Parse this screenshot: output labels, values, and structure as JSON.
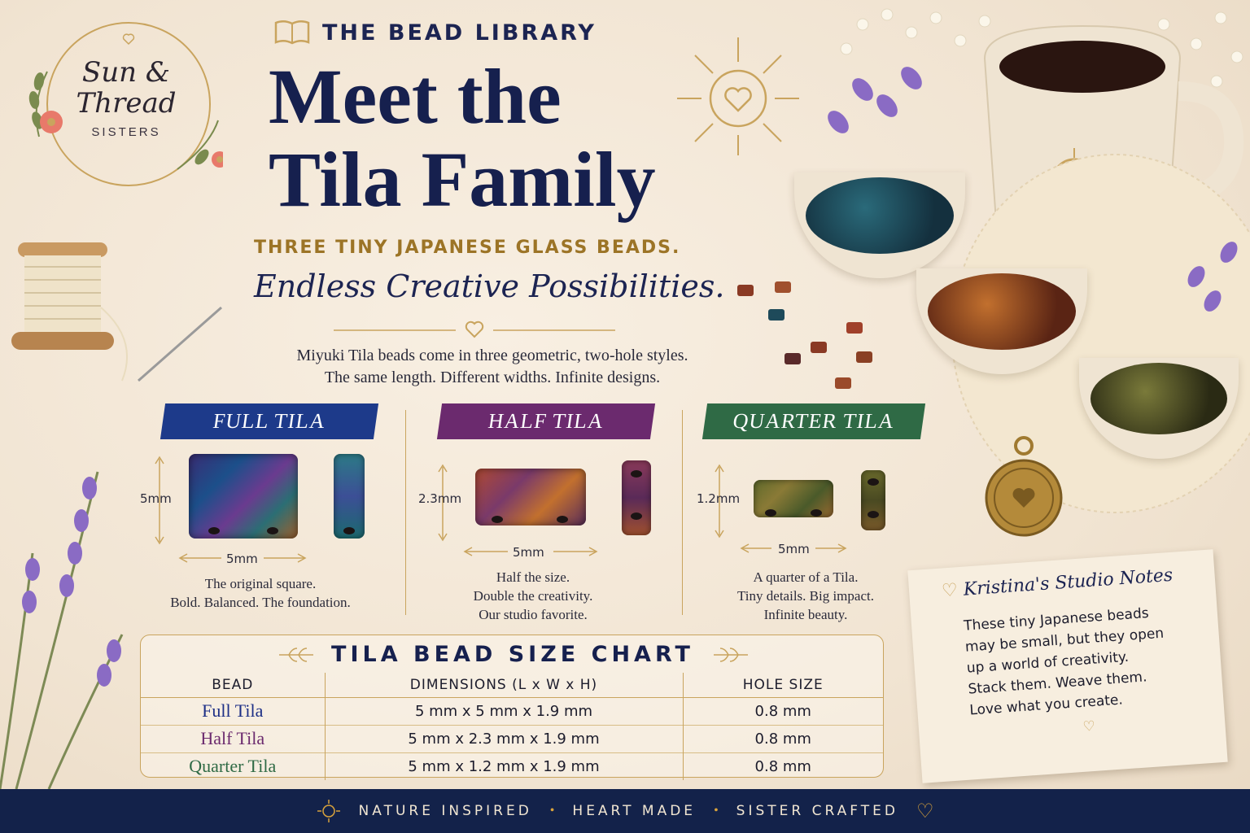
{
  "brand": {
    "logo_line1": "Sun &",
    "logo_line2": "Thread",
    "logo_sub": "SISTERS",
    "library": "THE BEAD LIBRARY"
  },
  "hero": {
    "title_line1": "Meet the",
    "title_line2": "Tila Family",
    "subtitle": "THREE TINY JAPANESE GLASS BEADS.",
    "tagline": "Endless Creative Possibilities.",
    "intro_line1": "Miyuki Tila beads come in three geometric, two-hole styles.",
    "intro_line2": "The same length. Different widths. Infinite designs."
  },
  "beads": [
    {
      "name": "FULL TILA",
      "height_label": "5mm",
      "length_label": "5mm",
      "desc": [
        "The original square.",
        "Bold. Balanced. The foundation."
      ],
      "banner_color": "#1d3a8a"
    },
    {
      "name": "HALF TILA",
      "height_label": "2.3mm",
      "length_label": "5mm",
      "desc": [
        "Half the size.",
        "Double the creativity.",
        "Our studio favorite."
      ],
      "banner_color": "#6b2a6e"
    },
    {
      "name": "QUARTER TILA",
      "height_label": "1.2mm",
      "length_label": "5mm",
      "desc": [
        "A quarter of a Tila.",
        "Tiny details. Big impact.",
        "Infinite beauty."
      ],
      "banner_color": "#2f6a45"
    }
  ],
  "chart": {
    "title": "TILA BEAD SIZE CHART",
    "headers": [
      "BEAD",
      "DIMENSIONS (L x W x H)",
      "HOLE SIZE"
    ],
    "rows": [
      {
        "bead": "Full Tila",
        "dims": "5 mm x 5 mm x 1.9 mm",
        "hole": "0.8 mm",
        "color": "#1d2f86"
      },
      {
        "bead": "Half Tila",
        "dims": "5 mm x 2.3 mm x 1.9 mm",
        "hole": "0.8 mm",
        "color": "#6b2a6e"
      },
      {
        "bead": "Quarter Tila",
        "dims": "5 mm x 1.2 mm x 1.9 mm",
        "hole": "0.8 mm",
        "color": "#2f6a45"
      }
    ]
  },
  "note": {
    "title": "Kristina's Studio Notes",
    "lines": [
      "These tiny Japanese beads",
      "may be small, but they open",
      "up a world of creativity.",
      "Stack them. Weave them.",
      "Love what you create."
    ]
  },
  "footer": {
    "items": [
      "NATURE INSPIRED",
      "HEART MADE",
      "SISTER CRAFTED"
    ]
  },
  "colors": {
    "navy": "#16204e",
    "gold": "#c9a45e",
    "background": "#f4e8d7"
  }
}
